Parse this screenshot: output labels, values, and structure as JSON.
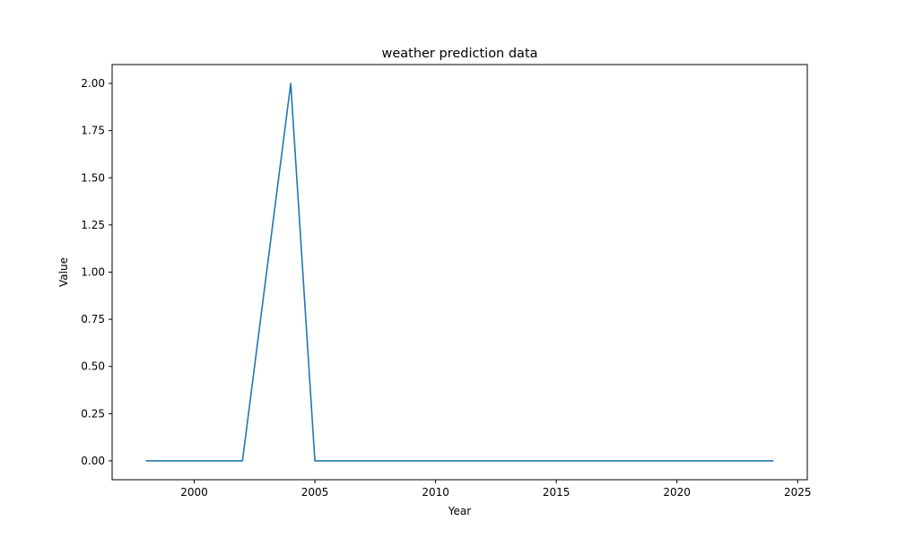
{
  "chart_data": {
    "type": "line",
    "title": "weather prediction data",
    "xlabel": "Year",
    "ylabel": "Value",
    "xlim": [
      1996.6,
      2025.4
    ],
    "ylim": [
      -0.1,
      2.1
    ],
    "xticks": [
      2000,
      2005,
      2010,
      2015,
      2020,
      2025
    ],
    "xtick_labels": [
      "2000",
      "2005",
      "2010",
      "2015",
      "2020",
      "2025"
    ],
    "yticks": [
      0.0,
      0.25,
      0.5,
      0.75,
      1.0,
      1.25,
      1.5,
      1.75,
      2.0
    ],
    "ytick_labels": [
      "0.00",
      "0.25",
      "0.50",
      "0.75",
      "1.00",
      "1.25",
      "1.50",
      "1.75",
      "2.00"
    ],
    "grid": false,
    "series": [
      {
        "color": "#1f77b4",
        "x": [
          1998,
          1999,
          2000,
          2001,
          2002,
          2003,
          2004,
          2005,
          2006,
          2007,
          2008,
          2009,
          2010,
          2011,
          2012,
          2013,
          2014,
          2015,
          2016,
          2017,
          2018,
          2019,
          2020,
          2021,
          2022,
          2023,
          2024
        ],
        "values": [
          0,
          0,
          0,
          0,
          0,
          1,
          2,
          0,
          0,
          0,
          0,
          0,
          0,
          0,
          0,
          0,
          0,
          0,
          0,
          0,
          0,
          0,
          0,
          0,
          0,
          0,
          0
        ]
      }
    ]
  }
}
